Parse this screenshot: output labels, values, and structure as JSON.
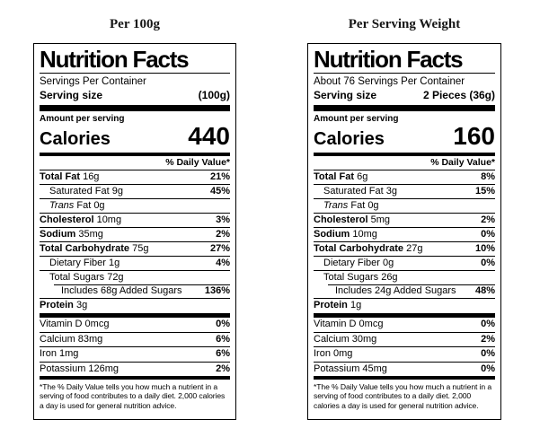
{
  "columns": [
    {
      "title": "Per 100g",
      "label": {
        "header": "Nutrition Facts",
        "servings_per_container": "Servings Per Container",
        "serving_size_label": "Serving size",
        "serving_size_value": "(100g)",
        "amount_per_serving": "Amount per serving",
        "calories_label": "Calories",
        "calories_value": "440",
        "daily_value_header": "% Daily Value*",
        "nutrients": [
          {
            "bold": "Total Fat",
            "text": "16g",
            "dv": "21%",
            "indent": 0
          },
          {
            "text": "Saturated Fat 9g",
            "dv": "45%",
            "indent": 1
          },
          {
            "italic": "Trans",
            "text": "Fat 0g",
            "dv": "",
            "indent": 1
          },
          {
            "bold": "Cholesterol",
            "text": "10mg",
            "dv": "3%",
            "indent": 0
          },
          {
            "bold": "Sodium",
            "text": "35mg",
            "dv": "2%",
            "indent": 0
          },
          {
            "bold": "Total Carbohydrate",
            "text": "75g",
            "dv": "27%",
            "indent": 0
          },
          {
            "text": "Dietary Fiber 1g",
            "dv": "4%",
            "indent": 1
          },
          {
            "text": "Total Sugars 72g",
            "dv": "",
            "indent": 1
          },
          {
            "text": "Includes 68g Added Sugars",
            "dv": "136%",
            "indent": 2
          },
          {
            "bold": "Protein",
            "text": "3g",
            "dv": "",
            "indent": 0
          }
        ],
        "vitamins": [
          {
            "text": "Vitamin D 0mcg",
            "dv": "0%"
          },
          {
            "text": "Calcium 83mg",
            "dv": "6%"
          },
          {
            "text": "Iron 1mg",
            "dv": "6%"
          },
          {
            "text": "Potassium 126mg",
            "dv": "2%"
          }
        ],
        "footnote": "*The % Daily Value tells you how much a nutrient in a serving of food contributes to a daily diet. 2,000 calories a day is used for general nutrition advice."
      }
    },
    {
      "title": "Per Serving Weight",
      "label": {
        "header": "Nutrition Facts",
        "servings_per_container": "About 76 Servings Per Container",
        "serving_size_label": "Serving size",
        "serving_size_value": "2 Pieces (36g)",
        "amount_per_serving": "Amount per serving",
        "calories_label": "Calories",
        "calories_value": "160",
        "daily_value_header": "% Daily Value*",
        "nutrients": [
          {
            "bold": "Total Fat",
            "text": "6g",
            "dv": "8%",
            "indent": 0
          },
          {
            "text": "Saturated Fat 3g",
            "dv": "15%",
            "indent": 1
          },
          {
            "italic": "Trans",
            "text": "Fat 0g",
            "dv": "",
            "indent": 1
          },
          {
            "bold": "Cholesterol",
            "text": "5mg",
            "dv": "2%",
            "indent": 0
          },
          {
            "bold": "Sodium",
            "text": "10mg",
            "dv": "0%",
            "indent": 0
          },
          {
            "bold": "Total Carbohydrate",
            "text": "27g",
            "dv": "10%",
            "indent": 0
          },
          {
            "text": "Dietary Fiber 0g",
            "dv": "0%",
            "indent": 1
          },
          {
            "text": "Total Sugars 26g",
            "dv": "",
            "indent": 1
          },
          {
            "text": "Includes 24g Added Sugars",
            "dv": "48%",
            "indent": 2
          },
          {
            "bold": "Protein",
            "text": "1g",
            "dv": "",
            "indent": 0
          }
        ],
        "vitamins": [
          {
            "text": "Vitamin D 0mcg",
            "dv": "0%"
          },
          {
            "text": "Calcium 30mg",
            "dv": "2%"
          },
          {
            "text": "Iron 0mg",
            "dv": "0%"
          },
          {
            "text": "Potassium 45mg",
            "dv": "0%"
          }
        ],
        "footnote": "*The % Daily Value tells you how much a nutrient in a serving of food contributes to a daily diet. 2,000 calories a day is used for general nutrition advice."
      }
    }
  ]
}
